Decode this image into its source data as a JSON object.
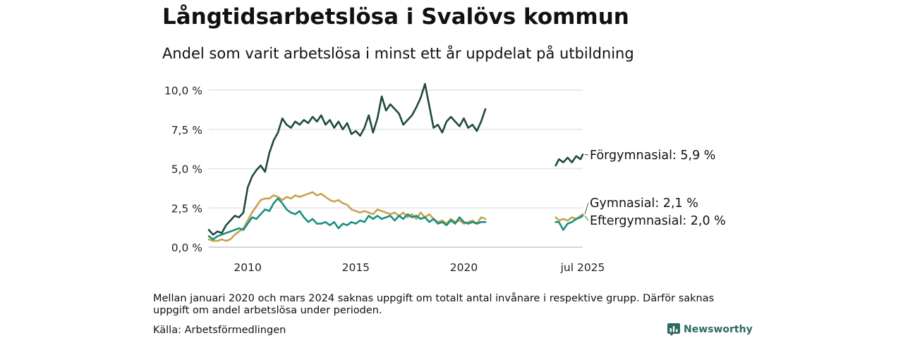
{
  "title": "Långtidsarbetslösa i Svalövs kommun",
  "subtitle": "Andel som varit arbetslösa i minst ett år uppdelat på utbildning",
  "note": "Mellan januari 2020 och mars 2024 saknas uppgift om totalt antal invånare i respektive grupp. Därför saknas uppgift om andel arbetslösa under perioden.",
  "source": "Källa: Arbetsförmedlingen",
  "brand": "Newsworthy",
  "chart_data": {
    "type": "line",
    "y_ticks": [
      "0,0 %",
      "2,5 %",
      "5,0 %",
      "7,5 %",
      "10,0 %"
    ],
    "y_tick_values": [
      0,
      2.5,
      5,
      7.5,
      10
    ],
    "ylim": [
      0,
      10.5
    ],
    "x_ticks": [
      {
        "label": "2010",
        "t": 2010.0
      },
      {
        "label": "2015",
        "t": 2015.0
      },
      {
        "label": "2020",
        "t": 2020.0
      },
      {
        "label": "jul 2025",
        "t": 2025.5
      }
    ],
    "grid": true,
    "series": [
      {
        "name": "Förgymnasial",
        "end_label": "Förgymnasial: 5,9 %",
        "color": "#1f4a3e",
        "segments": [
          [
            [
              2008.2,
              1.1
            ],
            [
              2008.4,
              0.8
            ],
            [
              2008.6,
              1.0
            ],
            [
              2008.8,
              0.9
            ],
            [
              2009.0,
              1.4
            ],
            [
              2009.2,
              1.7
            ],
            [
              2009.4,
              2.0
            ],
            [
              2009.6,
              1.9
            ],
            [
              2009.8,
              2.2
            ],
            [
              2010.0,
              3.8
            ],
            [
              2010.2,
              4.5
            ],
            [
              2010.4,
              4.9
            ],
            [
              2010.6,
              5.2
            ],
            [
              2010.8,
              4.8
            ],
            [
              2011.0,
              6.0
            ],
            [
              2011.2,
              6.8
            ],
            [
              2011.4,
              7.3
            ],
            [
              2011.6,
              8.2
            ],
            [
              2011.8,
              7.8
            ],
            [
              2012.0,
              7.6
            ],
            [
              2012.2,
              8.0
            ],
            [
              2012.4,
              7.8
            ],
            [
              2012.6,
              8.1
            ],
            [
              2012.8,
              7.9
            ],
            [
              2013.0,
              8.3
            ],
            [
              2013.2,
              8.0
            ],
            [
              2013.4,
              8.4
            ],
            [
              2013.6,
              7.8
            ],
            [
              2013.8,
              8.1
            ],
            [
              2014.0,
              7.6
            ],
            [
              2014.2,
              8.0
            ],
            [
              2014.4,
              7.5
            ],
            [
              2014.6,
              7.9
            ],
            [
              2014.8,
              7.2
            ],
            [
              2015.0,
              7.4
            ],
            [
              2015.2,
              7.1
            ],
            [
              2015.4,
              7.6
            ],
            [
              2015.6,
              8.4
            ],
            [
              2015.8,
              7.3
            ],
            [
              2016.0,
              8.2
            ],
            [
              2016.2,
              9.6
            ],
            [
              2016.4,
              8.7
            ],
            [
              2016.6,
              9.1
            ],
            [
              2016.8,
              8.8
            ],
            [
              2017.0,
              8.5
            ],
            [
              2017.2,
              7.8
            ],
            [
              2017.4,
              8.1
            ],
            [
              2017.6,
              8.4
            ],
            [
              2017.8,
              8.9
            ],
            [
              2018.0,
              9.5
            ],
            [
              2018.2,
              10.4
            ],
            [
              2018.4,
              9.0
            ],
            [
              2018.6,
              7.6
            ],
            [
              2018.8,
              7.8
            ],
            [
              2019.0,
              7.3
            ],
            [
              2019.2,
              8.0
            ],
            [
              2019.4,
              8.3
            ],
            [
              2019.6,
              8.0
            ],
            [
              2019.8,
              7.7
            ],
            [
              2020.0,
              8.2
            ],
            [
              2020.2,
              7.6
            ],
            [
              2020.4,
              7.8
            ],
            [
              2020.6,
              7.4
            ],
            [
              2020.8,
              8.0
            ],
            [
              2021.0,
              8.8
            ]
          ],
          [
            [
              2024.25,
              5.2
            ],
            [
              2024.4,
              5.6
            ],
            [
              2024.6,
              5.4
            ],
            [
              2024.8,
              5.7
            ],
            [
              2025.0,
              5.4
            ],
            [
              2025.2,
              5.8
            ],
            [
              2025.4,
              5.6
            ],
            [
              2025.5,
              5.9
            ]
          ]
        ]
      },
      {
        "name": "Gymnasial",
        "end_label": "Gymnasial: 2,1 %",
        "color": "#c9a24f",
        "segments": [
          [
            [
              2008.2,
              0.5
            ],
            [
              2008.4,
              0.4
            ],
            [
              2008.6,
              0.4
            ],
            [
              2008.8,
              0.5
            ],
            [
              2009.0,
              0.4
            ],
            [
              2009.2,
              0.5
            ],
            [
              2009.4,
              0.8
            ],
            [
              2009.6,
              1.0
            ],
            [
              2009.8,
              1.2
            ],
            [
              2010.0,
              1.7
            ],
            [
              2010.2,
              2.2
            ],
            [
              2010.4,
              2.6
            ],
            [
              2010.6,
              3.0
            ],
            [
              2010.8,
              3.1
            ],
            [
              2011.0,
              3.1
            ],
            [
              2011.2,
              3.3
            ],
            [
              2011.4,
              3.2
            ],
            [
              2011.6,
              3.0
            ],
            [
              2011.8,
              3.2
            ],
            [
              2012.0,
              3.1
            ],
            [
              2012.2,
              3.3
            ],
            [
              2012.4,
              3.2
            ],
            [
              2012.6,
              3.3
            ],
            [
              2012.8,
              3.4
            ],
            [
              2013.0,
              3.5
            ],
            [
              2013.2,
              3.3
            ],
            [
              2013.4,
              3.4
            ],
            [
              2013.6,
              3.2
            ],
            [
              2013.8,
              3.0
            ],
            [
              2014.0,
              2.9
            ],
            [
              2014.2,
              3.0
            ],
            [
              2014.4,
              2.8
            ],
            [
              2014.6,
              2.7
            ],
            [
              2014.8,
              2.4
            ],
            [
              2015.0,
              2.3
            ],
            [
              2015.2,
              2.2
            ],
            [
              2015.4,
              2.3
            ],
            [
              2015.6,
              2.2
            ],
            [
              2015.8,
              2.1
            ],
            [
              2016.0,
              2.4
            ],
            [
              2016.2,
              2.3
            ],
            [
              2016.4,
              2.2
            ],
            [
              2016.6,
              2.1
            ],
            [
              2016.8,
              2.2
            ],
            [
              2017.0,
              2.0
            ],
            [
              2017.2,
              2.2
            ],
            [
              2017.4,
              1.9
            ],
            [
              2017.6,
              2.1
            ],
            [
              2017.8,
              1.8
            ],
            [
              2018.0,
              2.2
            ],
            [
              2018.2,
              1.9
            ],
            [
              2018.4,
              2.1
            ],
            [
              2018.6,
              1.8
            ],
            [
              2018.8,
              1.6
            ],
            [
              2019.0,
              1.7
            ],
            [
              2019.2,
              1.5
            ],
            [
              2019.4,
              1.8
            ],
            [
              2019.6,
              1.6
            ],
            [
              2019.8,
              1.7
            ],
            [
              2020.0,
              1.5
            ],
            [
              2020.2,
              1.6
            ],
            [
              2020.4,
              1.7
            ],
            [
              2020.6,
              1.5
            ],
            [
              2020.8,
              1.9
            ],
            [
              2021.0,
              1.8
            ]
          ],
          [
            [
              2024.25,
              1.9
            ],
            [
              2024.4,
              1.7
            ],
            [
              2024.6,
              1.8
            ],
            [
              2024.8,
              1.7
            ],
            [
              2025.0,
              1.9
            ],
            [
              2025.2,
              1.8
            ],
            [
              2025.4,
              2.0
            ],
            [
              2025.5,
              2.1
            ]
          ]
        ]
      },
      {
        "name": "Eftergymnasial",
        "end_label": "Eftergymnasial: 2,0 %",
        "color": "#18907e",
        "segments": [
          [
            [
              2008.2,
              0.7
            ],
            [
              2008.4,
              0.5
            ],
            [
              2008.6,
              0.7
            ],
            [
              2008.8,
              0.8
            ],
            [
              2009.0,
              0.9
            ],
            [
              2009.2,
              1.0
            ],
            [
              2009.4,
              1.1
            ],
            [
              2009.6,
              1.2
            ],
            [
              2009.8,
              1.1
            ],
            [
              2010.0,
              1.5
            ],
            [
              2010.2,
              1.9
            ],
            [
              2010.4,
              1.8
            ],
            [
              2010.6,
              2.1
            ],
            [
              2010.8,
              2.4
            ],
            [
              2011.0,
              2.3
            ],
            [
              2011.2,
              2.8
            ],
            [
              2011.4,
              3.1
            ],
            [
              2011.6,
              2.8
            ],
            [
              2011.8,
              2.4
            ],
            [
              2012.0,
              2.2
            ],
            [
              2012.2,
              2.1
            ],
            [
              2012.4,
              2.3
            ],
            [
              2012.6,
              1.9
            ],
            [
              2012.8,
              1.6
            ],
            [
              2013.0,
              1.8
            ],
            [
              2013.2,
              1.5
            ],
            [
              2013.4,
              1.5
            ],
            [
              2013.6,
              1.6
            ],
            [
              2013.8,
              1.4
            ],
            [
              2014.0,
              1.6
            ],
            [
              2014.2,
              1.2
            ],
            [
              2014.4,
              1.5
            ],
            [
              2014.6,
              1.4
            ],
            [
              2014.8,
              1.6
            ],
            [
              2015.0,
              1.5
            ],
            [
              2015.2,
              1.7
            ],
            [
              2015.4,
              1.6
            ],
            [
              2015.6,
              2.0
            ],
            [
              2015.8,
              1.8
            ],
            [
              2016.0,
              2.0
            ],
            [
              2016.2,
              1.8
            ],
            [
              2016.4,
              1.9
            ],
            [
              2016.6,
              2.0
            ],
            [
              2016.8,
              1.7
            ],
            [
              2017.0,
              2.0
            ],
            [
              2017.2,
              1.8
            ],
            [
              2017.4,
              2.1
            ],
            [
              2017.6,
              1.9
            ],
            [
              2017.8,
              2.0
            ],
            [
              2018.0,
              1.8
            ],
            [
              2018.2,
              1.9
            ],
            [
              2018.4,
              1.6
            ],
            [
              2018.6,
              1.8
            ],
            [
              2018.8,
              1.5
            ],
            [
              2019.0,
              1.6
            ],
            [
              2019.2,
              1.4
            ],
            [
              2019.4,
              1.7
            ],
            [
              2019.6,
              1.5
            ],
            [
              2019.8,
              1.9
            ],
            [
              2020.0,
              1.6
            ],
            [
              2020.2,
              1.5
            ],
            [
              2020.4,
              1.6
            ],
            [
              2020.6,
              1.5
            ],
            [
              2020.8,
              1.6
            ],
            [
              2021.0,
              1.6
            ]
          ],
          [
            [
              2024.25,
              1.6
            ],
            [
              2024.4,
              1.6
            ],
            [
              2024.6,
              1.1
            ],
            [
              2024.8,
              1.5
            ],
            [
              2025.0,
              1.6
            ],
            [
              2025.2,
              1.8
            ],
            [
              2025.4,
              1.9
            ],
            [
              2025.5,
              2.0
            ]
          ]
        ]
      }
    ]
  }
}
